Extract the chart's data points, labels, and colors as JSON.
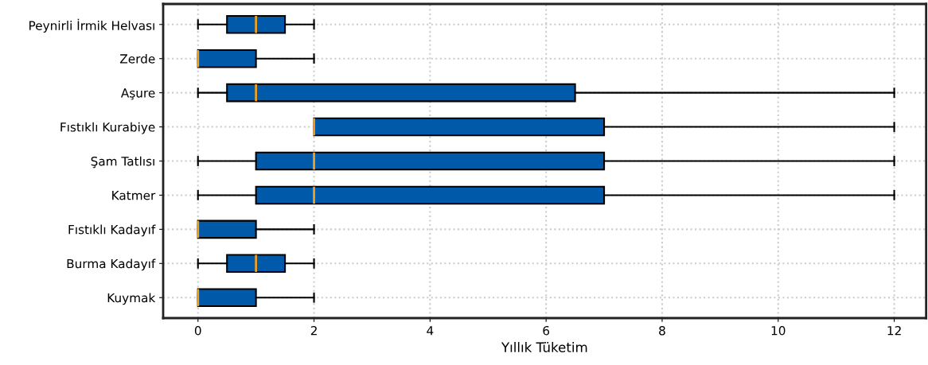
{
  "chart_data": {
    "type": "box",
    "orientation": "horizontal",
    "xlabel": "Yıllık Tüketim",
    "categories": [
      "Peynirli İrmik Helvası",
      "Zerde",
      "Aşure",
      "Fıstıklı Kurabiye",
      "Şam Tatlısı",
      "Katmer",
      "Fıstıklı Kadayıf",
      "Burma Kadayıf",
      "Kuymak"
    ],
    "boxes": [
      {
        "low": 0,
        "q1": 0.5,
        "median": 1,
        "q3": 1.5,
        "high": 2
      },
      {
        "low": 0,
        "q1": 0,
        "median": 0,
        "q3": 1,
        "high": 2
      },
      {
        "low": 0,
        "q1": 0.5,
        "median": 1,
        "q3": 6.5,
        "high": 12
      },
      {
        "low": 2,
        "q1": 2,
        "median": 2,
        "q3": 7,
        "high": 12
      },
      {
        "low": 0,
        "q1": 1,
        "median": 2,
        "q3": 7,
        "high": 12
      },
      {
        "low": 0,
        "q1": 1,
        "median": 2,
        "q3": 7,
        "high": 12
      },
      {
        "low": 0,
        "q1": 0,
        "median": 0,
        "q3": 1,
        "high": 2
      },
      {
        "low": 0,
        "q1": 0.5,
        "median": 1,
        "q3": 1.5,
        "high": 2
      },
      {
        "low": 0,
        "q1": 0,
        "median": 0,
        "q3": 1,
        "high": 2
      }
    ],
    "color": "#005aa9",
    "xlim": [
      -0.6,
      12.55
    ],
    "xticks": [
      0,
      2,
      4,
      6,
      8,
      10,
      12
    ],
    "grid": true
  }
}
